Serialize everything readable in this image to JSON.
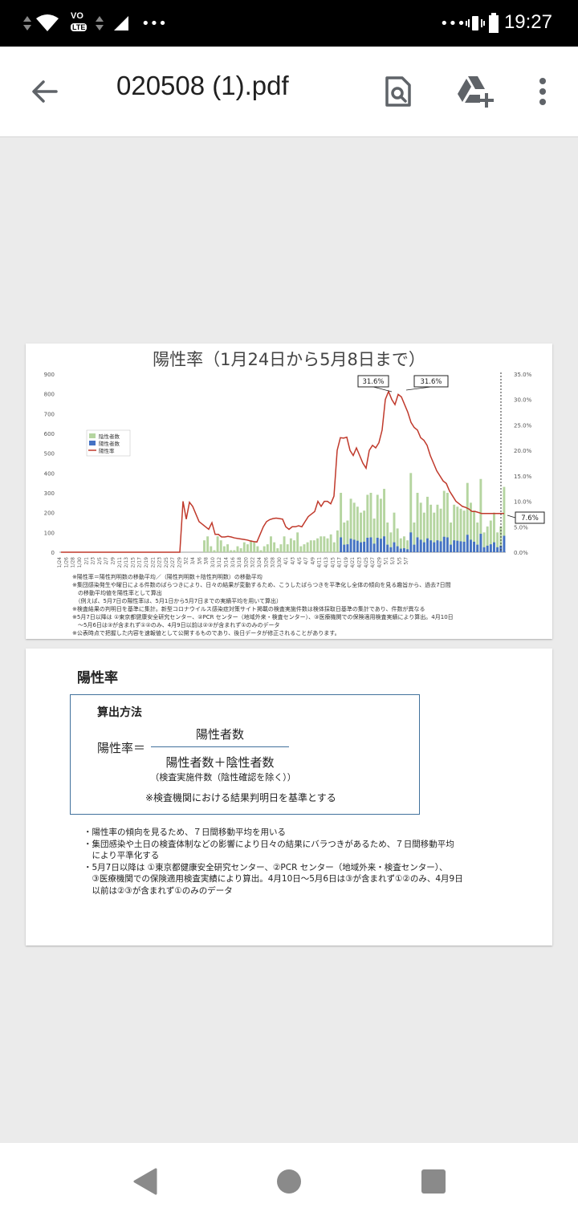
{
  "status_bar": {
    "time": "19:27",
    "network_label": "LTE",
    "volte_label": "VO"
  },
  "app_bar": {
    "file_name": "020508 (1).pdf"
  },
  "page1": {
    "chart_title": "陽性率（1月24日から5月8日まで）",
    "notes": [
      "※陽性率＝陽性判明数の移動平均／（陽性判明数＋陰性判明数）の移動平均",
      "※集団感染発生や曜日による件数のばらつきにより、日々の結果が変動するため、こうしたばらつきを平準化し全体の傾向を見る趣旨から、過去7日間",
      "　の移動平均値を陽性率として算出",
      "　（例えば、5月7日の陽性率は、5月1日から5月7日までの実績平均を用いて算出）",
      "※検査結果の判明日を基準に集計。新型コロナウイルス感染症対策サイト掲載の検査実施件数は検体採取日基準の集計であり、件数が異なる",
      "※5月7日以降は ①東京都健康安全研究センター、②PCR センター（地域外来・検査センター）、③医療機関での保険適用検査実績により算出。4月10日",
      "　〜5月6日は③が含まれず①②のみ、4月9日以前は②③が含まれず①のみのデータ",
      "※公表時点で把握した内容を速報値として公開するものであり、後日データが修正されることがあります。"
    ]
  },
  "chart_data": {
    "type": "bar",
    "title": "陽性率（1月24日から5月8日まで）",
    "xlabel": "",
    "ylabel": "",
    "ylim": [
      0,
      900
    ],
    "y2lim": [
      0,
      0.35
    ],
    "y_ticks": [
      "0",
      "100",
      "200",
      "300",
      "400",
      "500",
      "600",
      "700",
      "800",
      "900"
    ],
    "y2_ticks": [
      "0.0%",
      "5.0%",
      "10.0%",
      "15.0%",
      "20.0%",
      "25.0%",
      "30.0%",
      "35.0%"
    ],
    "x_ticks": [
      "1/24",
      "1/26",
      "1/28",
      "1/30",
      "2/1",
      "2/3",
      "2/5",
      "2/7",
      "2/9",
      "2/11",
      "2/13",
      "2/15",
      "2/17",
      "2/19",
      "2/21",
      "2/23",
      "2/25",
      "2/27",
      "2/29",
      "3/2",
      "3/4",
      "3/6",
      "3/8",
      "3/10",
      "3/12",
      "3/14",
      "3/16",
      "3/18",
      "3/20",
      "3/22",
      "3/24",
      "3/26",
      "3/28",
      "3/30",
      "4/1",
      "4/3",
      "4/5",
      "4/7",
      "4/9",
      "4/11",
      "4/13",
      "4/15",
      "4/17",
      "4/19",
      "4/21",
      "4/23",
      "4/25",
      "4/27",
      "4/29",
      "5/1",
      "5/3",
      "5/5",
      "5/7"
    ],
    "legend": [
      "陰性者数",
      "陽性者数",
      "陽性率"
    ],
    "legend_position": "top-left",
    "colors": {
      "negative": "#b5d5a0",
      "positive": "#4472c4",
      "rate": "#c0392b"
    },
    "annotations": [
      "31.6%",
      "31.6%",
      "7.6%"
    ],
    "series": [
      {
        "name": "陰性者数",
        "values": [
          0,
          0,
          0,
          0,
          0,
          0,
          0,
          0,
          0,
          0,
          0,
          0,
          0,
          0,
          0,
          0,
          0,
          0,
          0,
          0,
          0,
          0,
          0,
          0,
          0,
          0,
          0,
          0,
          0,
          0,
          0,
          0,
          0,
          0,
          0,
          0,
          0,
          0,
          0,
          0,
          0,
          0,
          0,
          60,
          80,
          30,
          10,
          80,
          60,
          30,
          40,
          10,
          10,
          30,
          20,
          50,
          40,
          60,
          50,
          30,
          10,
          30,
          40,
          80,
          50,
          20,
          40,
          80,
          40,
          70,
          60,
          100,
          30,
          40,
          50,
          60,
          60,
          70,
          80,
          80,
          70,
          90,
          50,
          110,
          300,
          150,
          160,
          270,
          250,
          230,
          200,
          210,
          290,
          300,
          170,
          290,
          270,
          320,
          150,
          100,
          200,
          120,
          70,
          80,
          60,
          400,
          150,
          300,
          250,
          200,
          280,
          240,
          200,
          240,
          220,
          310,
          300,
          150,
          240,
          230,
          220,
          210,
          350,
          250,
          210,
          150,
          370,
          100,
          130,
          160,
          200,
          100,
          130,
          330
        ]
      },
      {
        "name": "陽性者数",
        "values": [
          0,
          0,
          0,
          0,
          0,
          0,
          0,
          0,
          0,
          0,
          0,
          0,
          0,
          0,
          0,
          0,
          0,
          0,
          0,
          0,
          0,
          0,
          0,
          0,
          0,
          0,
          0,
          0,
          0,
          0,
          0,
          0,
          0,
          0,
          0,
          0,
          0,
          0,
          0,
          0,
          0,
          0,
          0,
          0,
          0,
          0,
          0,
          0,
          0,
          0,
          0,
          0,
          0,
          0,
          0,
          0,
          0,
          0,
          0,
          0,
          0,
          0,
          0,
          0,
          0,
          0,
          0,
          0,
          0,
          0,
          0,
          0,
          0,
          0,
          0,
          0,
          0,
          0,
          0,
          0,
          0,
          0,
          0,
          0,
          0,
          0,
          0,
          0,
          0,
          0,
          0,
          0,
          0,
          0,
          0,
          0,
          0,
          0,
          0,
          0,
          0,
          0,
          0,
          0,
          0,
          0,
          0,
          0,
          0,
          0,
          0,
          0,
          0,
          0,
          0,
          0,
          0,
          0,
          0,
          0,
          0,
          0,
          0,
          0,
          0,
          0,
          0,
          0,
          0,
          0,
          0,
          0,
          0,
          0,
          0,
          0,
          0,
          0
        ]
      },
      {
        "name": "陽性率",
        "values": [
          0,
          0,
          0,
          0,
          0,
          0,
          0,
          0,
          0,
          0,
          0,
          0,
          0,
          0,
          0,
          0,
          0,
          0,
          0,
          0,
          0,
          0,
          0,
          0,
          0,
          0,
          0,
          0,
          0,
          0,
          0,
          0,
          0,
          0,
          0,
          0,
          0,
          0,
          0.1,
          0.065,
          0.098,
          0.09,
          0.075,
          0.06,
          0.055,
          0.05,
          0.045,
          0.058,
          0.035,
          0.035,
          0.03,
          0.03,
          0.031,
          0.03,
          0.028,
          0.027,
          0.026,
          0.025,
          0.024,
          0.022,
          0.021,
          0.02,
          0.035,
          0.05,
          0.06,
          0.064,
          0.066,
          0.067,
          0.066,
          0.065,
          0.05,
          0.045,
          0.05,
          0.05,
          0.052,
          0.05,
          0.06,
          0.07,
          0.075,
          0.08,
          0.1,
          0.09,
          0.1,
          0.1,
          0.095,
          0.11,
          0.2,
          0.225,
          0.224,
          0.226,
          0.2,
          0.19,
          0.205,
          0.19,
          0.175,
          0.165,
          0.2,
          0.21,
          0.205,
          0.215,
          0.24,
          0.3,
          0.316,
          0.3,
          0.29,
          0.31,
          0.305,
          0.29,
          0.275,
          0.255,
          0.245,
          0.24,
          0.225,
          0.22,
          0.21,
          0.19,
          0.175,
          0.16,
          0.15,
          0.14,
          0.135,
          0.12,
          0.11,
          0.1,
          0.095,
          0.09,
          0.088,
          0.085,
          0.08,
          0.08,
          0.078,
          0.076,
          0.076,
          0.076,
          0.076,
          0.076,
          0.076,
          0.076,
          0.076
        ]
      }
    ]
  },
  "page2": {
    "heading": "陽性率",
    "box_title": "算出方法",
    "formula_lhs": "陽性率＝",
    "numerator": "陽性者数",
    "denominator": "陽性者数＋陰性者数",
    "denominator_note": "（検査実施件数（陰性確認を除く））",
    "basis_note": "※検査機関における結果判明日を基準とする",
    "bullets": [
      "・陽性率の傾向を見るため、７日間移動平均を用いる",
      "・集団感染や土日の検査体制などの影響により日々の結果にバラつきがあるため、７日間移動平均",
      "　により平準化する",
      "・5月7日以降は ①東京都健康安全研究センター、②PCR センター（地域外来・検査センター）、",
      "　③医療機関での保険適用検査実績により算出。4月10日～5月6日は③が含まれず①②のみ、4月9日",
      "　以前は②③が含まれず①のみのデータ"
    ]
  }
}
